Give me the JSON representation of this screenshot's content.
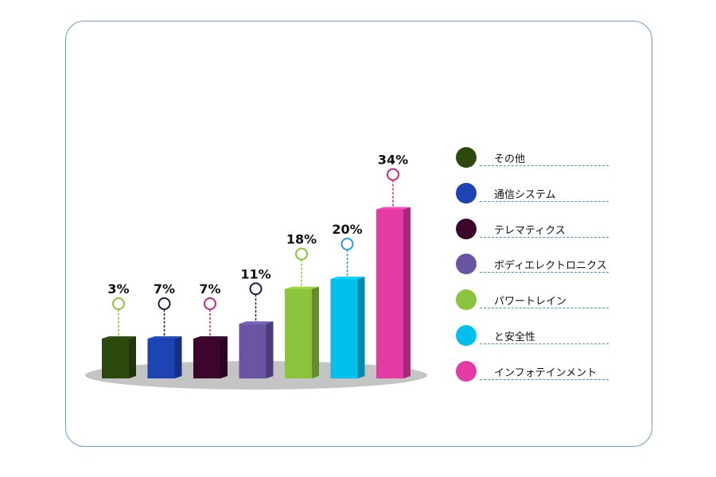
{
  "chart_data": {
    "type": "bar",
    "categories": [
      "その他",
      "通信システム",
      "テレマティクス",
      "ボディエレクトロニクス",
      "パワートレイン",
      "と安全性",
      "インフォテインメント"
    ],
    "values": [
      3,
      7,
      7,
      11,
      18,
      20,
      34
    ],
    "value_labels": [
      "3%",
      "7%",
      "7%",
      "11%",
      "18%",
      "20%",
      "34%"
    ],
    "colors": [
      "#2d4a0e",
      "#1e44b4",
      "#3c062c",
      "#6a55a4",
      "#8bc43c",
      "#00c0ee",
      "#e43aa4"
    ],
    "marker_colors": [
      "#8bc43c",
      "#1a1a4e",
      "#c4287c",
      "#1a1a4e",
      "#8bc43c",
      "#2e9bd0",
      "#c4287c"
    ],
    "legend_placement": "right",
    "grid": false
  }
}
